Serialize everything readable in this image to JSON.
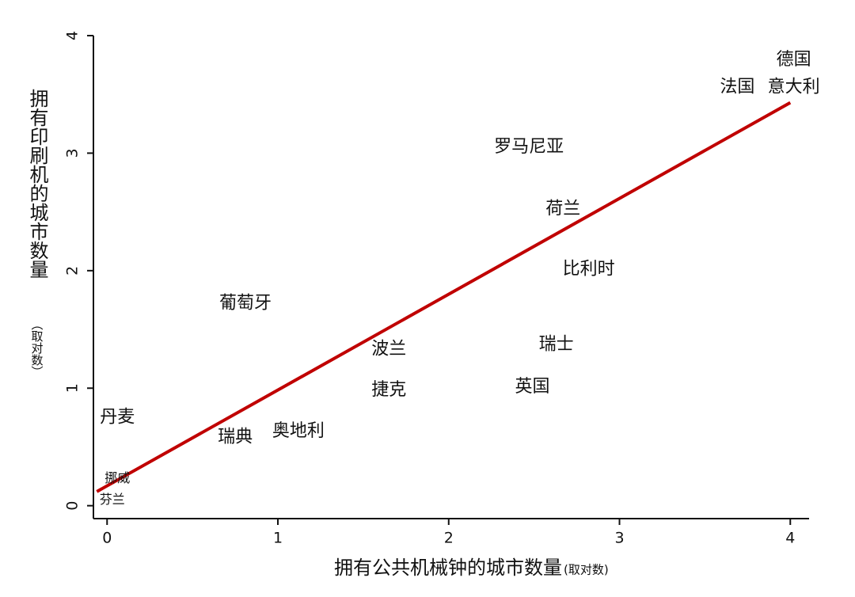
{
  "chart_data": {
    "type": "text_scatter",
    "xlabel": "拥有公共机械钟的城市数量",
    "xlabel_note": "(取对数)",
    "ylabel": "拥有印刷机的城市数量",
    "ylabel_note": "（取对数）",
    "xlim": [
      -0.08,
      4.11
    ],
    "ylim": [
      -0.11,
      4.0
    ],
    "xticks": [
      0,
      1,
      2,
      3,
      4
    ],
    "yticks": [
      0,
      1,
      2,
      3,
      4
    ],
    "points": [
      {
        "label": "德国",
        "x": 4.02,
        "y": 3.79
      },
      {
        "label": "法国",
        "x": 3.69,
        "y": 3.56
      },
      {
        "label": "意大利",
        "x": 4.02,
        "y": 3.56
      },
      {
        "label": "罗马尼亚",
        "x": 2.47,
        "y": 3.05
      },
      {
        "label": "荷兰",
        "x": 2.67,
        "y": 2.52
      },
      {
        "label": "比利时",
        "x": 2.82,
        "y": 2.01
      },
      {
        "label": "葡萄牙",
        "x": 0.81,
        "y": 1.72
      },
      {
        "label": "波兰",
        "x": 1.65,
        "y": 1.33
      },
      {
        "label": "瑞士",
        "x": 2.63,
        "y": 1.37
      },
      {
        "label": "捷克",
        "x": 1.65,
        "y": 0.98
      },
      {
        "label": "英国",
        "x": 2.49,
        "y": 1.01
      },
      {
        "label": "丹麦",
        "x": 0.06,
        "y": 0.75
      },
      {
        "label": "奥地利",
        "x": 1.12,
        "y": 0.63
      },
      {
        "label": "瑞典",
        "x": 0.75,
        "y": 0.58
      },
      {
        "label": "挪威",
        "x": 0.06,
        "y": 0.23
      },
      {
        "label": "芬兰",
        "x": 0.03,
        "y": 0.05
      }
    ],
    "fit": {
      "x": [
        -0.06,
        4.0
      ],
      "y": [
        0.12,
        3.43
      ],
      "color": "#c00000"
    }
  }
}
